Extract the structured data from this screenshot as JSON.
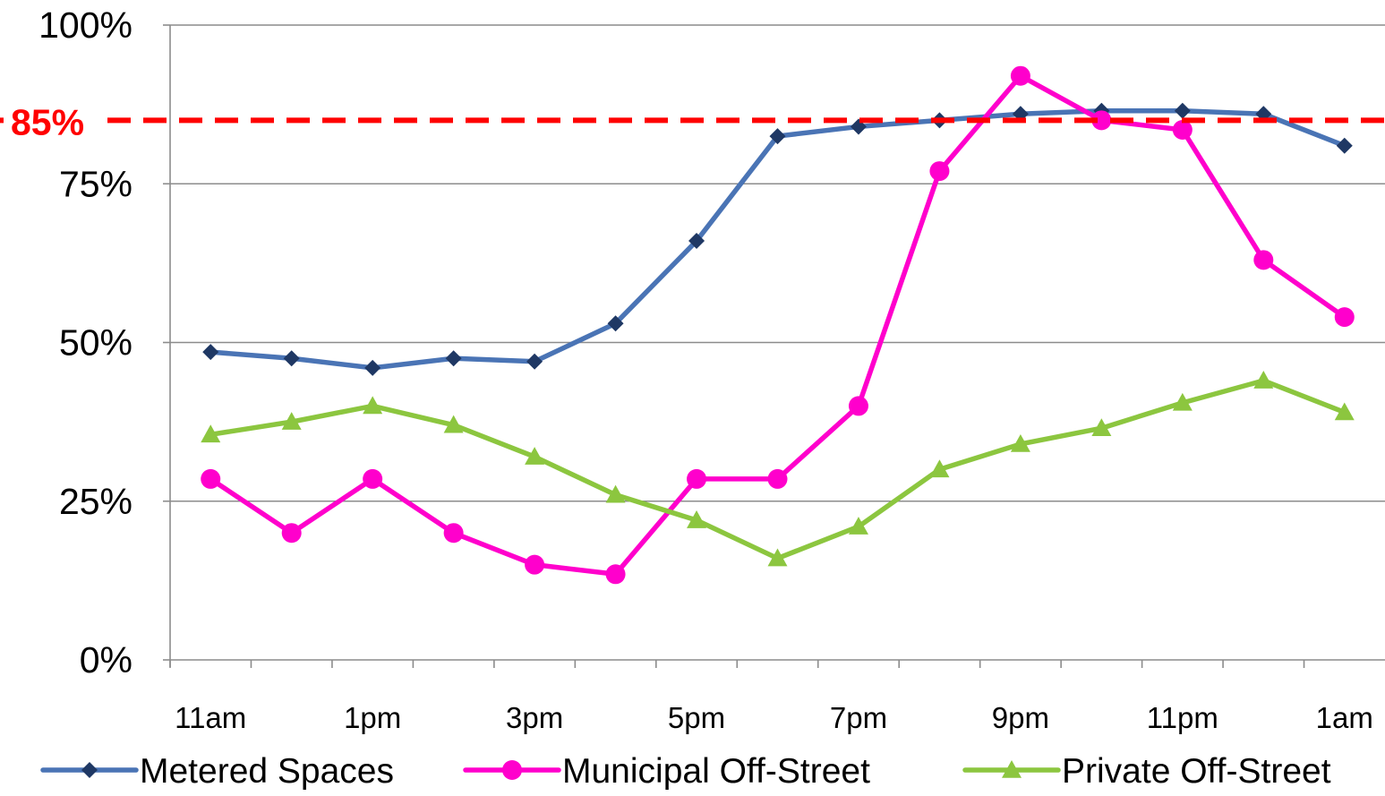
{
  "chart_data": {
    "type": "line",
    "title": "",
    "xlabel": "",
    "ylabel": "",
    "ylim": [
      0,
      100
    ],
    "y_ticks": [
      "0%",
      "25%",
      "50%",
      "75%",
      "100%"
    ],
    "y_tick_values": [
      0,
      25,
      50,
      75,
      100
    ],
    "categories": [
      "11am",
      "12pm",
      "1pm",
      "2pm",
      "3pm",
      "4pm",
      "5pm",
      "6pm",
      "7pm",
      "8pm",
      "9pm",
      "10pm",
      "11pm",
      "12am",
      "1am"
    ],
    "x_tick_labels_shown": [
      "11am",
      "",
      "1pm",
      "",
      "3pm",
      "",
      "5pm",
      "",
      "7pm",
      "",
      "9pm",
      "",
      "11pm",
      "",
      "1am"
    ],
    "grid": true,
    "legend_position": "bottom",
    "reference_line": {
      "value": 85,
      "label": "85%",
      "color": "#ff0000",
      "style": "dashed"
    },
    "series": [
      {
        "name": "Metered Spaces",
        "color": "#4a74b5",
        "marker_color": "#1f3864",
        "marker": "diamond",
        "values": [
          48.5,
          47.5,
          46,
          47.5,
          47,
          53,
          66,
          82.5,
          84,
          85,
          86,
          86.5,
          86.5,
          86,
          81
        ]
      },
      {
        "name": "Municipal Off-Street",
        "color": "#ff00cc",
        "marker_color": "#ff00cc",
        "marker": "circle",
        "values": [
          28.5,
          20,
          28.5,
          20,
          15,
          13.5,
          28.5,
          28.5,
          40,
          77,
          92,
          85,
          83.5,
          63,
          54
        ]
      },
      {
        "name": "Private Off-Street",
        "color": "#8cc63f",
        "marker_color": "#8cc63f",
        "marker": "triangle",
        "values": [
          35.5,
          37.5,
          40,
          37,
          32,
          26,
          22,
          16,
          21,
          30,
          34,
          36.5,
          40.5,
          44,
          39
        ]
      }
    ]
  }
}
